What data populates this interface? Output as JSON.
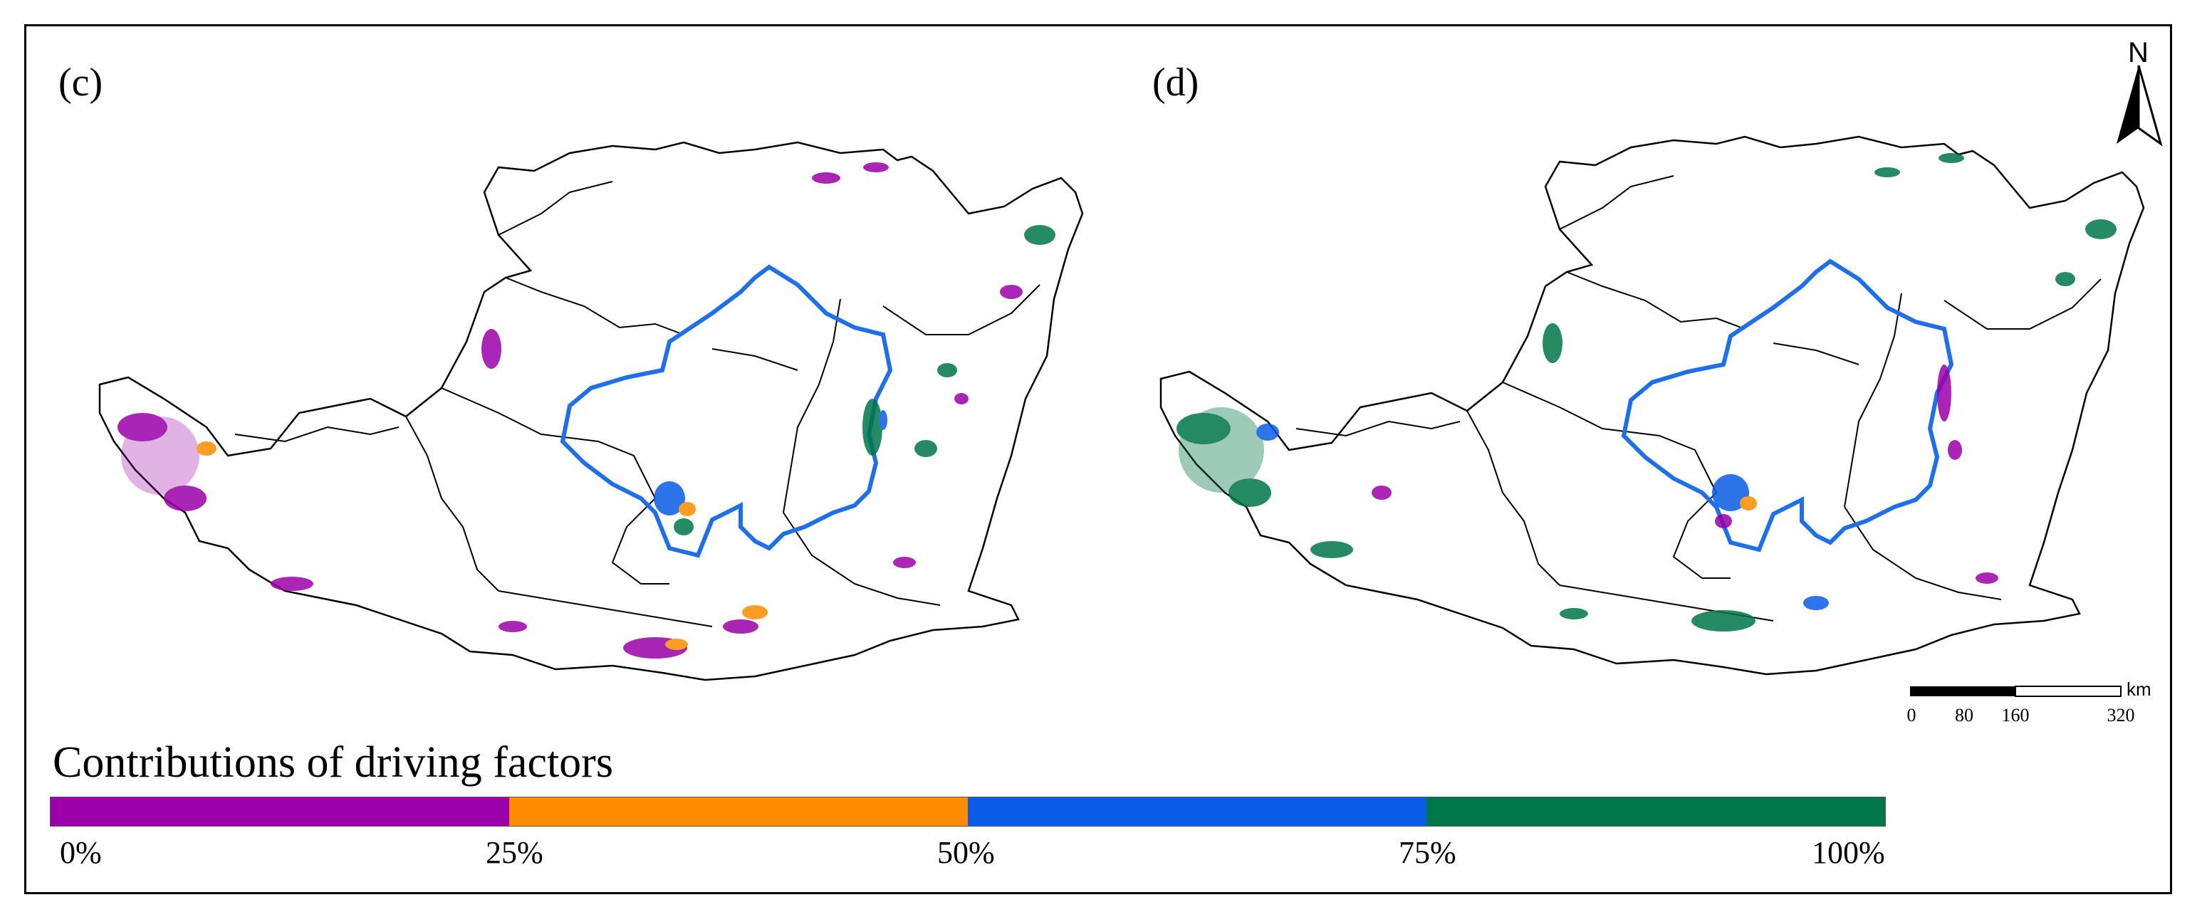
{
  "panels": [
    {
      "label": "(c)"
    },
    {
      "label": "(d)"
    }
  ],
  "north_arrow": {
    "letter": "N",
    "icon": "north-arrow-icon"
  },
  "scale_bar": {
    "unit": "km",
    "ticks": [
      "0",
      "80",
      "160",
      "320"
    ]
  },
  "legend": {
    "title": "Contributions of driving factors",
    "colors": [
      "#9b00a8",
      "#ff8c00",
      "#0a5ce6",
      "#00764a"
    ],
    "ticks": [
      "0%",
      "25%",
      "50%",
      "75%",
      "100%"
    ]
  },
  "boundary_color": "#1e6fe8"
}
